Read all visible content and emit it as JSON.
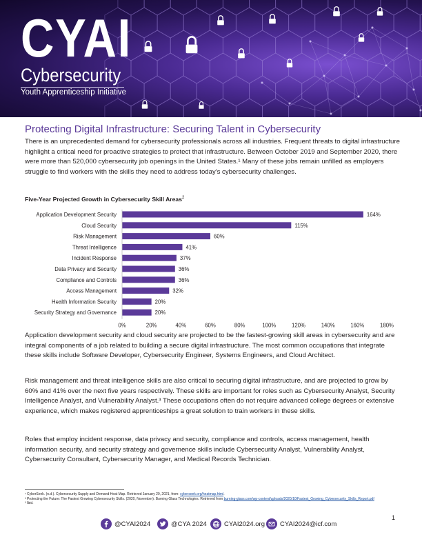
{
  "header": {
    "logo_main": "CYAI",
    "logo_sub": "Cybersecurity",
    "logo_tagline": "Youth Apprenticeship Initiative"
  },
  "article": {
    "title": "Protecting Digital Infrastructure: Securing Talent in Cybersecurity",
    "p1": "There is an unprecedented demand for cybersecurity professionals across all industries. Frequent threats to digital infrastructure highlight a critical need for proactive strategies to protect that infrastructure. Between October 2019 and September 2020, there were more than 520,000 cybersecurity job openings in the United States.¹ Many of these jobs remain unfilled as employers struggle to find workers with the skills they need to address today's cybersecurity challenges.",
    "p2": "Application development security and cloud security are projected to be the fastest-growing skill areas in cybersecurity and are integral components of a job related to building a secure digital infrastructure. The most common occupations that integrate these skills include Software Developer, Cybersecurity Engineer, Systems Engineers, and Cloud Architect.",
    "p3": "Risk management and threat intelligence skills are also critical to securing digital infrastructure, and are projected to grow by 60% and 41% over the next five years respectively. These skills are important for roles such as Cybersecurity Analyst, Security Intelligence Analyst, and Vulnerability Analyst.³ These occupations often do not require advanced college degrees or extensive experience, which makes registered apprenticeships a great solution to train workers in these skills.",
    "p4": "Roles that employ incident response, data privacy and security, compliance and controls, access management, health information security, and security strategy and governence skills include Cybersecurity Analyst, Vulnerability Analyst, Cybersecurity Consultant, Cybersecurity Manager, and Medical Records Technician."
  },
  "chart_data": {
    "type": "bar",
    "orientation": "horizontal",
    "title": "Five-Year Projected Growth in Cybersecurity Skill Areas",
    "title_note": "2",
    "categories": [
      "Application Development Security",
      "Cloud Security",
      "Risk Management",
      "Threat Intelligence",
      "Incident Response",
      "Data Privacy and Security",
      "Compliance and Controls",
      "Access Management",
      "Health Information Security",
      "Security Strategy and Governance"
    ],
    "values": [
      164,
      115,
      60,
      41,
      37,
      36,
      36,
      32,
      20,
      20
    ],
    "data_labels": [
      "164%",
      "115%",
      "60%",
      "41%",
      "37%",
      "36%",
      "36%",
      "32%",
      "20%",
      "20%"
    ],
    "x_ticks": [
      0,
      20,
      40,
      60,
      80,
      100,
      120,
      140,
      160,
      180
    ],
    "x_tick_labels": [
      "0%",
      "20%",
      "40%",
      "60%",
      "80%",
      "100%",
      "120%",
      "140%",
      "160%",
      "180%"
    ],
    "xlim": [
      0,
      180
    ],
    "grid": false,
    "bar_color": "#5b3a99"
  },
  "footnotes": {
    "fn1_text": "¹ CyberSeek. (n.d.). Cybersecurity Supply and Demand Heat Map. Retrieved January 20, 2021, from: ",
    "fn1_link": "cyberseek.org/heatmap.html",
    "fn1_end": ".",
    "fn2_text": "² Protecting the Future: The Fastest Growing Cybersecurity Skills. (2020, November). Burning Glass Technologies. Retrieved from ",
    "fn2_link": "burning-glass.com/wp-content/uploads/2020/10/Fastest_Growing_Cybersecurity_Skills_Report.pdf",
    "fn3_text": "³ Ibid."
  },
  "page_number": "1",
  "footer": {
    "facebook": "@CYAI2024",
    "twitter": "@CYA 2024",
    "website": "CYAI2024.org",
    "email": "CYAI2024@icf.com"
  },
  "colors": {
    "accent": "#5b3a99",
    "banner_dark": "#12082c"
  },
  "icons": [
    "facebook-icon",
    "twitter-icon",
    "globe-icon",
    "email-icon",
    "padlock-icon"
  ]
}
